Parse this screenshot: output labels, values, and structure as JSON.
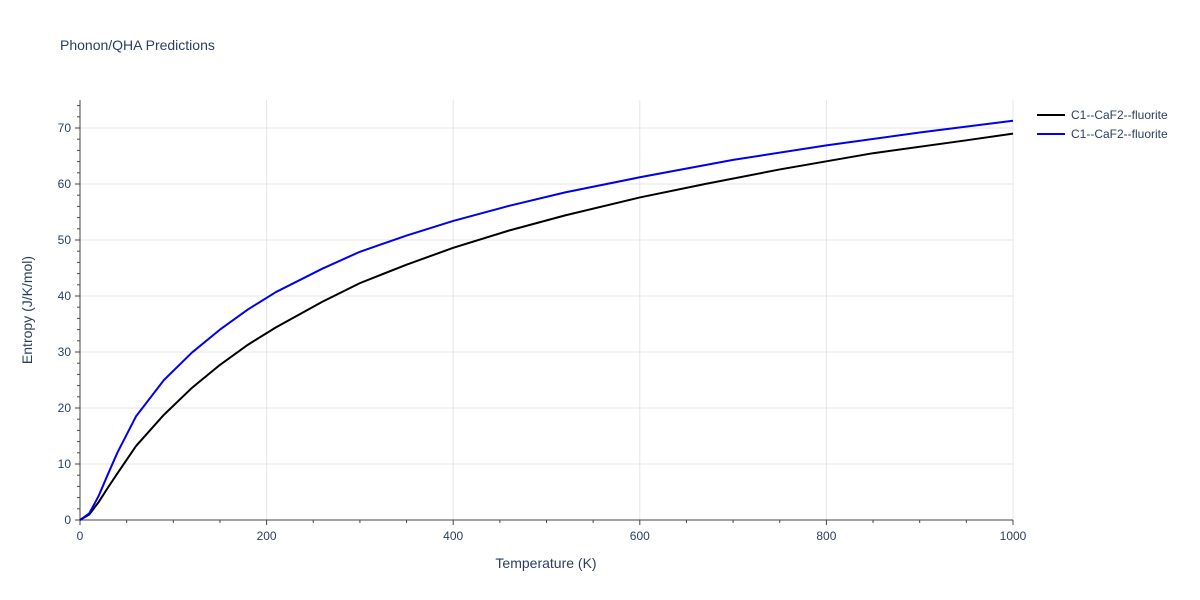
{
  "chart_data": {
    "type": "line",
    "title": "Phonon/QHA Predictions",
    "xlabel": "Temperature (K)",
    "ylabel": "Entropy (J/K/mol)",
    "xlim": [
      0,
      1000
    ],
    "ylim": [
      0,
      75
    ],
    "x_ticks": [
      0,
      200,
      400,
      600,
      800,
      1000
    ],
    "y_ticks": [
      0,
      10,
      20,
      30,
      40,
      50,
      60,
      70
    ],
    "grid": true,
    "legend_position": "top-right",
    "series": [
      {
        "name": "C1--CaF2--fluorite",
        "color": "#000000",
        "x": [
          0,
          10,
          20,
          30,
          40,
          60,
          90,
          120,
          150,
          180,
          210,
          260,
          300,
          350,
          400,
          460,
          520,
          600,
          670,
          750,
          850,
          950,
          1000
        ],
        "y": [
          0,
          1.0,
          3.2,
          5.8,
          8.3,
          13.2,
          18.8,
          23.6,
          27.7,
          31.3,
          34.4,
          39.0,
          42.3,
          45.6,
          48.6,
          51.7,
          54.4,
          57.6,
          60.0,
          62.6,
          65.5,
          67.8,
          69.0
        ]
      },
      {
        "name": "C1--CaF2--fluorite",
        "color": "#0000ee",
        "x": [
          0,
          10,
          20,
          30,
          40,
          60,
          90,
          120,
          150,
          180,
          210,
          260,
          300,
          350,
          400,
          460,
          520,
          600,
          700,
          800,
          900,
          1000
        ],
        "y": [
          0,
          1.2,
          4.3,
          8.2,
          12.0,
          18.5,
          25.0,
          29.9,
          34.0,
          37.6,
          40.7,
          44.9,
          47.9,
          50.8,
          53.4,
          56.1,
          58.5,
          61.2,
          64.3,
          66.9,
          69.2,
          71.3
        ]
      }
    ]
  }
}
